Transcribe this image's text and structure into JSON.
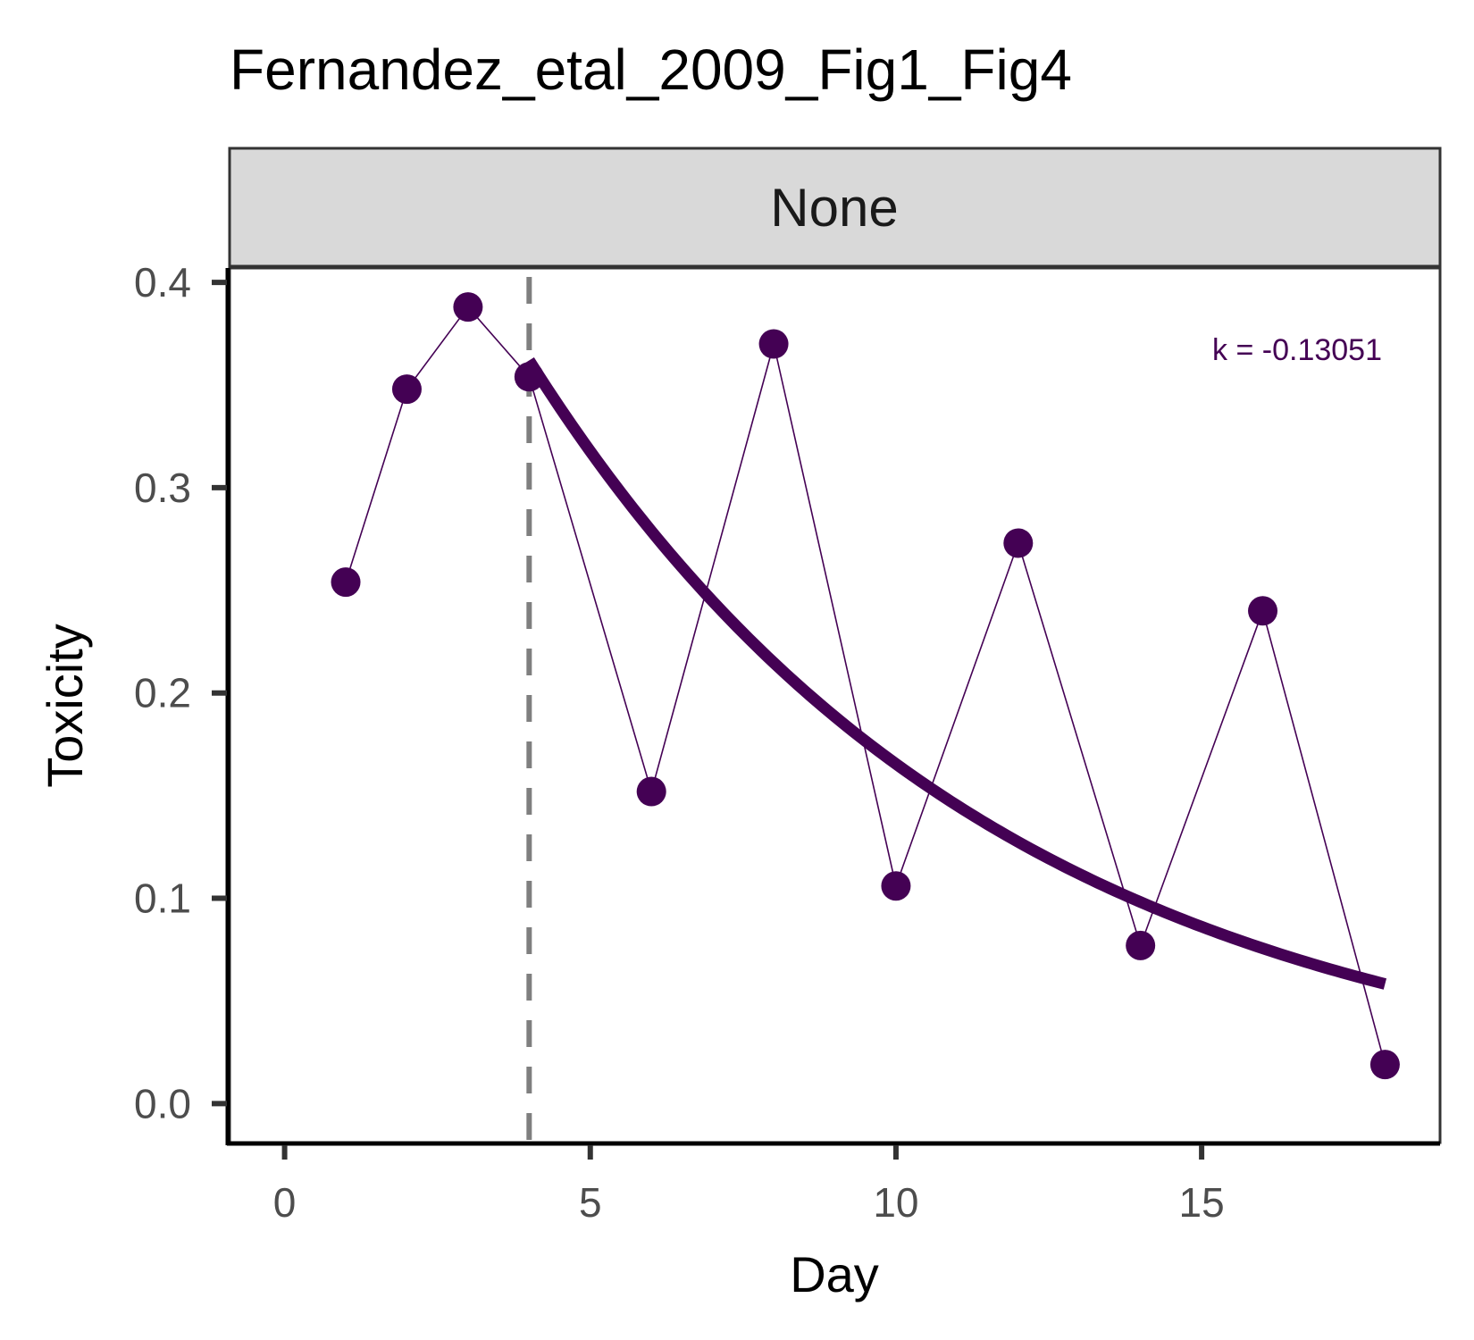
{
  "chart_data": {
    "type": "scatter",
    "title": "Fernandez_etal_2009_Fig1_Fig4",
    "facet_label": "None",
    "xlabel": "Day",
    "ylabel": "Toxicity",
    "xlim": [
      -0.9,
      18.9
    ],
    "ylim": [
      -0.019,
      0.407
    ],
    "x_ticks": [
      0,
      5,
      10,
      15
    ],
    "y_ticks": [
      0.0,
      0.1,
      0.2,
      0.3,
      0.4
    ],
    "x_tick_labels": [
      "0",
      "5",
      "10",
      "15"
    ],
    "y_tick_labels": [
      "0.0",
      "0.1",
      "0.2",
      "0.3",
      "0.4"
    ],
    "grid": false,
    "vline_x": 4,
    "series": [
      {
        "x": [
          1,
          2,
          3,
          4,
          6,
          8,
          10,
          12,
          14,
          16,
          18
        ],
        "y": [
          0.254,
          0.348,
          0.388,
          0.354,
          0.152,
          0.37,
          0.106,
          0.273,
          0.077,
          0.24,
          0.019
        ]
      }
    ],
    "fit": {
      "type": "exponential",
      "k": -0.13051,
      "x_start": 4,
      "x_end": 18,
      "y_at_start": 0.362
    },
    "annotation": "k = -0.13051",
    "colors": {
      "series": "#440154",
      "vline": "#7f7f7f",
      "strip_fill": "#d9d9d9"
    }
  }
}
